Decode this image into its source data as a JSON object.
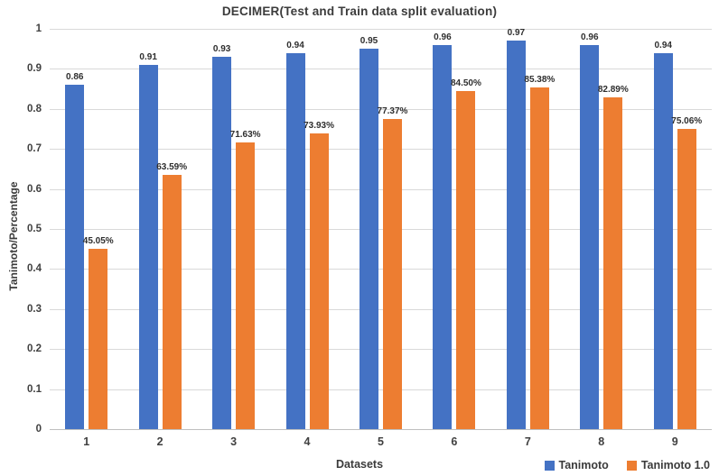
{
  "chart_data": {
    "type": "bar",
    "title": "DECIMER(Test and Train data split evaluation)",
    "xlabel": "Datasets",
    "ylabel": "Tanimoto/Percentage",
    "categories": [
      "1",
      "2",
      "3",
      "4",
      "5",
      "6",
      "7",
      "8",
      "9"
    ],
    "series": [
      {
        "name": "Tanimoto",
        "color": "#4472C4",
        "values": [
          0.86,
          0.91,
          0.93,
          0.94,
          0.95,
          0.96,
          0.97,
          0.96,
          0.94
        ],
        "labels": [
          "0.86",
          "0.91",
          "0.93",
          "0.94",
          "0.95",
          "0.96",
          "0.97",
          "0.96",
          "0.94"
        ]
      },
      {
        "name": "Tanimoto 1.0",
        "color": "#ED7D31",
        "values": [
          0.4505,
          0.6359,
          0.7163,
          0.7393,
          0.7737,
          0.845,
          0.8538,
          0.8289,
          0.7506
        ],
        "labels": [
          "45.05%",
          "63.59%",
          "71.63%",
          "73.93%",
          "77.37%",
          "84.50%",
          "85.38%",
          "82.89%",
          "75.06%"
        ]
      }
    ],
    "ylim": [
      0,
      1
    ],
    "y_ticks": [
      "0",
      "0.1",
      "0.2",
      "0.3",
      "0.4",
      "0.5",
      "0.6",
      "0.7",
      "0.8",
      "0.9",
      "1"
    ],
    "grid": true,
    "legend_position": "bottom-right",
    "colors": {
      "gridline": "#D9D9D9",
      "axis_line": "#BFBFBF",
      "text": "#404040"
    }
  }
}
